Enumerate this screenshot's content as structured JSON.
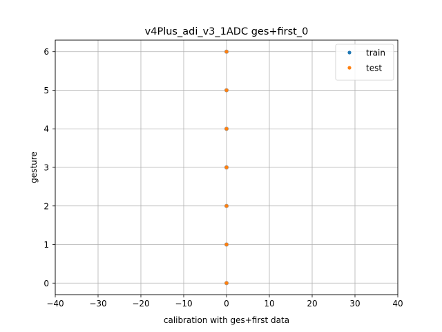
{
  "chart_data": {
    "type": "scatter",
    "title": "v4Plus_adi_v3_1ADC ges+first_0",
    "xlabel": "calibration with ges+first data",
    "ylabel": "gesture",
    "xlim": [
      -40,
      40
    ],
    "ylim": [
      -0.3,
      6.3
    ],
    "xticks": [
      -40,
      -30,
      -20,
      -10,
      0,
      10,
      20,
      30,
      40
    ],
    "xtick_labels": [
      "−40",
      "−30",
      "−20",
      "−10",
      "0",
      "10",
      "20",
      "30",
      "40"
    ],
    "yticks": [
      0,
      1,
      2,
      3,
      4,
      5,
      6
    ],
    "ytick_labels": [
      "0",
      "1",
      "2",
      "3",
      "4",
      "5",
      "6"
    ],
    "grid": true,
    "legend_position": "top-right",
    "series": [
      {
        "name": "train",
        "color": "#1f77b4",
        "points": [
          [
            0,
            0
          ],
          [
            0,
            1
          ],
          [
            0,
            2
          ],
          [
            0,
            3
          ],
          [
            0,
            4
          ],
          [
            0,
            5
          ],
          [
            0,
            6
          ]
        ]
      },
      {
        "name": "test",
        "color": "#ff7f0e",
        "points": [
          [
            0,
            0
          ],
          [
            0,
            1
          ],
          [
            0,
            2
          ],
          [
            0,
            3
          ],
          [
            0,
            4
          ],
          [
            0,
            5
          ],
          [
            0,
            6
          ]
        ]
      }
    ]
  }
}
